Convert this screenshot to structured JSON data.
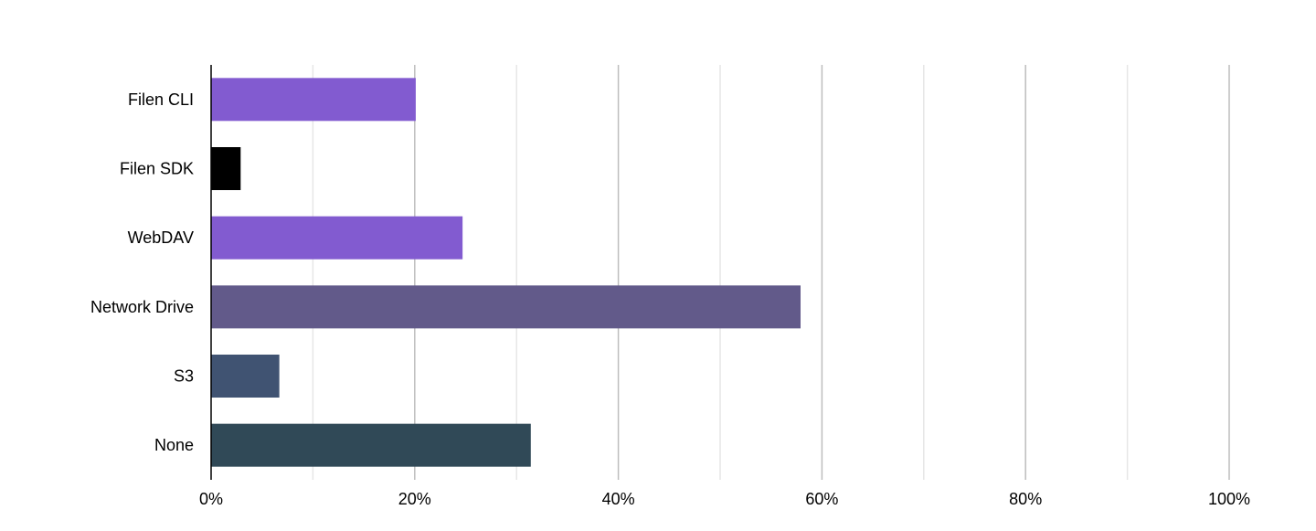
{
  "chart_data": {
    "type": "bar",
    "orientation": "horizontal",
    "title": "",
    "xlabel": "",
    "ylabel": "",
    "xlim": [
      0,
      100
    ],
    "x_ticks": [
      0,
      20,
      40,
      60,
      80,
      100
    ],
    "x_tick_labels": [
      "0%",
      "20%",
      "40%",
      "60%",
      "80%",
      "100%"
    ],
    "grid": true,
    "legend": "none",
    "categories": [
      "Filen CLI",
      "Filen SDK",
      "WebDAV",
      "Network Drive",
      "S3",
      "None"
    ],
    "values": [
      20.1,
      2.9,
      24.7,
      57.9,
      6.7,
      31.4
    ],
    "colors": [
      "#825bd0",
      "#000000",
      "#825bd0",
      "#625a8a",
      "#405372",
      "#304957"
    ]
  }
}
